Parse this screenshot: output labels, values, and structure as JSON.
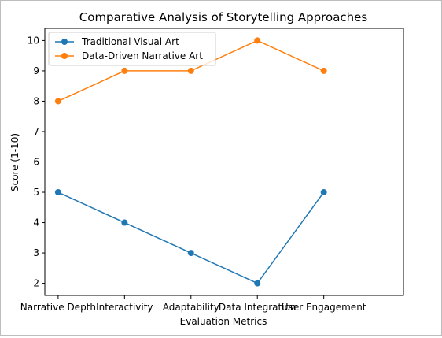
{
  "chart_data": {
    "type": "line",
    "title": "Comparative Analysis of Storytelling Approaches",
    "xlabel": "Evaluation Metrics",
    "ylabel": "Score (1-10)",
    "categories": [
      "Narrative Depth",
      "Interactivity",
      "Adaptability",
      "Data Integration",
      "User Engagement"
    ],
    "series": [
      {
        "name": "Traditional Visual Art",
        "color": "#1f77b4",
        "values": [
          5,
          4,
          3,
          2,
          5
        ]
      },
      {
        "name": "Data-Driven Narrative Art",
        "color": "#ff7f0e",
        "values": [
          8,
          9,
          9,
          10,
          9
        ]
      }
    ],
    "ylim": [
      1.6,
      10.4
    ],
    "yticks": [
      2,
      3,
      4,
      5,
      6,
      7,
      8,
      9,
      10
    ],
    "grid": false,
    "legend_position": "top-left",
    "markers": "circle"
  }
}
